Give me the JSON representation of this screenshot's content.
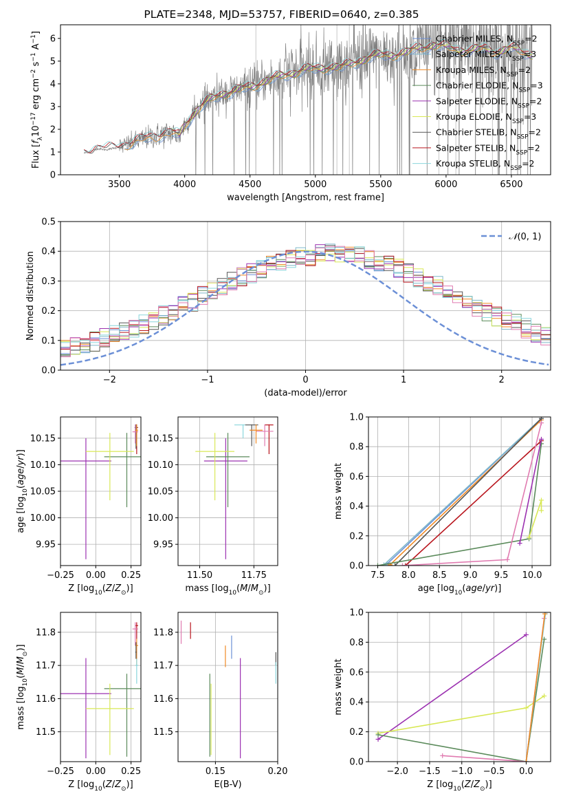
{
  "figure_title": "PLATE=2348, MJD=53757, FIBERID=0640, z=0.385",
  "colors": {
    "Chabrier MILES": "#6b8fd6",
    "Salpeter MILES": "#7fb8c9",
    "Kroupa MILES": "#f08a24",
    "Chabrier ELODIE": "#5a8a5a",
    "Salpeter ELODIE": "#9b30b0",
    "Kroupa ELODIE": "#d8e855",
    "Chabrier STELIB": "#555555",
    "Salpeter STELIB": "#b8141c",
    "Kroupa STELIB": "#8ad6dc",
    "pink": "#e07ab0",
    "data": "#7f7f7f"
  },
  "chart_data": [
    {
      "id": "spectrum",
      "type": "line",
      "xlabel": "wavelength [Angstrom, rest frame]",
      "ylabel": "Flux [f_λ 10^-17 erg cm^-2 s^-1 A^-1]",
      "xlim": [
        3050,
        6800
      ],
      "ylim": [
        0,
        6.6
      ],
      "xticks": [
        3500,
        4000,
        4500,
        5000,
        5500,
        6000,
        6500
      ],
      "yticks": [
        0,
        1,
        2,
        3,
        4,
        5,
        6
      ],
      "grid": false,
      "legend_position": "right",
      "legend": [
        {
          "prefix": "Chabrier MILES, N",
          "sub": "SSP",
          "suffix": "=2"
        },
        {
          "prefix": "Salpeter MILES, N",
          "sub": "SSP",
          "suffix": "=3"
        },
        {
          "prefix": "Kroupa MILES, N",
          "sub": "SSP",
          "suffix": "=2"
        },
        {
          "prefix": "Chabrier ELODIE, N",
          "sub": "SSP",
          "suffix": "=3"
        },
        {
          "prefix": "Salpeter ELODIE, N",
          "sub": "SSP",
          "suffix": "=2"
        },
        {
          "prefix": "Kroupa ELODIE, N",
          "sub": "SSP",
          "suffix": "=3"
        },
        {
          "prefix": "Chabrier STELIB, N",
          "sub": "SSP",
          "suffix": "=2"
        },
        {
          "prefix": "Salpeter STELIB, N",
          "sub": "SSP",
          "suffix": "=2"
        },
        {
          "prefix": "Kroupa STELIB, N",
          "sub": "SSP",
          "suffix": "=2"
        }
      ],
      "continuum_points": [
        [
          3230,
          0.95
        ],
        [
          3290,
          1.05
        ],
        [
          3330,
          1.15
        ],
        [
          3400,
          1.1
        ],
        [
          3480,
          1.2
        ],
        [
          3600,
          1.4
        ],
        [
          3700,
          1.6
        ],
        [
          3800,
          1.75
        ],
        [
          3900,
          1.85
        ],
        [
          3960,
          1.7
        ],
        [
          4000,
          2.2
        ],
        [
          4100,
          2.9
        ],
        [
          4200,
          3.3
        ],
        [
          4300,
          3.6
        ],
        [
          4400,
          3.7
        ],
        [
          4500,
          3.85
        ],
        [
          4600,
          4.1
        ],
        [
          4700,
          4.25
        ],
        [
          4800,
          4.45
        ],
        [
          4900,
          4.6
        ],
        [
          5000,
          4.65
        ],
        [
          5100,
          4.75
        ],
        [
          5200,
          4.7
        ],
        [
          5300,
          4.95
        ],
        [
          5400,
          5.15
        ],
        [
          5500,
          5.25
        ],
        [
          5600,
          5.3
        ],
        [
          5700,
          5.35
        ],
        [
          5800,
          5.6
        ],
        [
          5900,
          5.7
        ],
        [
          6000,
          5.6
        ],
        [
          6100,
          5.5
        ],
        [
          6200,
          5.45
        ],
        [
          6300,
          5.55
        ],
        [
          6400,
          5.4
        ],
        [
          6500,
          5.55
        ],
        [
          6600,
          5.4
        ],
        [
          6660,
          5.3
        ]
      ]
    },
    {
      "id": "residuals",
      "type": "histogram",
      "xlabel": "(data-model)/error",
      "ylabel": "Normed distribution",
      "xlim": [
        -2.5,
        2.5
      ],
      "ylim": [
        0,
        0.5
      ],
      "xticks": [
        -2,
        -1,
        0,
        1,
        2
      ],
      "yticks": [
        0.0,
        0.1,
        0.2,
        0.3,
        0.4,
        0.5
      ],
      "grid": true,
      "legend_position": "top-right",
      "legend": "N(0,1)",
      "gaussian": {
        "mean": 0,
        "sigma": 1
      },
      "bin_width": 0.1
    },
    {
      "id": "age_vs_Z",
      "type": "errorbar",
      "xlabel": "Z [log10(Z/Z⊙)]",
      "ylabel": "age [log10(age/yr)]",
      "xlim": [
        -0.25,
        0.32
      ],
      "ylim": [
        9.91,
        10.19
      ],
      "xticks": [
        -0.25,
        0.0,
        0.25
      ],
      "yticks": [
        9.95,
        10.0,
        10.05,
        10.1,
        10.15
      ],
      "grid": true,
      "points": [
        {
          "model": "Salpeter ELODIE",
          "x": -0.07,
          "xerr": 0.18,
          "y": 10.107,
          "ylo": 9.922,
          "yhi": 10.15
        },
        {
          "model": "Chabrier ELODIE",
          "x": 0.22,
          "xerr": 0.16,
          "y": 10.115,
          "ylo": 10.02,
          "yhi": 10.16
        },
        {
          "model": "Kroupa ELODIE",
          "x": 0.1,
          "xerr": 0.17,
          "y": 10.125,
          "ylo": 10.033,
          "yhi": 10.16
        },
        {
          "model": "Salpeter STELIB",
          "x": 0.29,
          "xerr": 0.01,
          "y": 10.17,
          "ylo": 10.12,
          "yhi": 10.176
        },
        {
          "model": "Chabrier STELIB",
          "x": 0.285,
          "xerr": 0.01,
          "y": 10.17,
          "ylo": 10.13,
          "yhi": 10.176
        },
        {
          "model": "pink",
          "x": 0.28,
          "xerr": 0.02,
          "y": 10.162,
          "ylo": 10.14,
          "yhi": 10.176
        },
        {
          "model": "Kroupa MILES",
          "x": 0.29,
          "xerr": 0.01,
          "y": 10.165,
          "ylo": 10.135,
          "yhi": 10.176
        }
      ]
    },
    {
      "id": "age_vs_mass",
      "type": "errorbar",
      "xlabel": "mass [log10(M/M⊙)]",
      "ylabel": "",
      "xlim": [
        11.4,
        11.86
      ],
      "ylim": [
        9.91,
        10.19
      ],
      "xticks": [
        11.5,
        11.75
      ],
      "yticks": [
        9.95,
        10.0,
        10.05,
        10.1,
        10.15
      ],
      "grid": true,
      "points": [
        {
          "model": "Salpeter ELODIE",
          "x": 11.62,
          "xerr": 0.1,
          "y": 10.107,
          "ylo": 9.922,
          "yhi": 10.15
        },
        {
          "model": "Chabrier ELODIE",
          "x": 11.63,
          "xerr": 0.1,
          "y": 10.115,
          "ylo": 10.02,
          "yhi": 10.16
        },
        {
          "model": "Kroupa ELODIE",
          "x": 11.57,
          "xerr": 0.09,
          "y": 10.125,
          "ylo": 10.033,
          "yhi": 10.16
        },
        {
          "model": "Kroupa STELIB",
          "x": 11.7,
          "xerr": 0.04,
          "y": 10.175,
          "ylo": 10.15,
          "yhi": 10.176
        },
        {
          "model": "Chabrier STELIB",
          "x": 11.74,
          "xerr": 0.03,
          "y": 10.175,
          "ylo": 10.135,
          "yhi": 10.176
        },
        {
          "model": "Salpeter STELIB",
          "x": 11.82,
          "xerr": 0.02,
          "y": 10.175,
          "ylo": 10.12,
          "yhi": 10.176
        },
        {
          "model": "pink",
          "x": 11.8,
          "xerr": 0.04,
          "y": 10.163,
          "ylo": 10.135,
          "yhi": 10.176
        },
        {
          "model": "Kroupa MILES",
          "x": 11.76,
          "xerr": 0.03,
          "y": 10.165,
          "ylo": 10.14,
          "yhi": 10.176
        }
      ]
    },
    {
      "id": "mass_weight_vs_age",
      "type": "line",
      "xlabel": "age [log10(age/yr)]",
      "ylabel": "mass weight",
      "xlim": [
        7.35,
        10.3
      ],
      "ylim": [
        0,
        1
      ],
      "xticks": [
        7.5,
        8.0,
        8.5,
        9.0,
        9.5,
        10.0
      ],
      "yticks": [
        0.0,
        0.2,
        0.4,
        0.6,
        0.8,
        1.0
      ],
      "grid": true,
      "series": [
        {
          "model": "Chabrier MILES",
          "points": [
            [
              7.65,
              0.01
            ],
            [
              10.15,
              0.99
            ]
          ]
        },
        {
          "model": "Salpeter MILES",
          "points": [
            [
              7.6,
              0.005
            ],
            [
              10.15,
              0.99
            ]
          ]
        },
        {
          "model": "Kroupa MILES",
          "points": [
            [
              7.7,
              0.005
            ],
            [
              10.15,
              0.98
            ]
          ]
        },
        {
          "model": "Chabrier STELIB",
          "points": [
            [
              7.78,
              0.0
            ],
            [
              10.15,
              0.99
            ]
          ]
        },
        {
          "model": "Salpeter STELIB",
          "points": [
            [
              7.95,
              0.0
            ],
            [
              10.15,
              0.84
            ]
          ]
        },
        {
          "model": "Chabrier ELODIE",
          "points": [
            [
              7.5,
              0.0
            ],
            [
              9.95,
              0.18
            ],
            [
              10.15,
              0.82
            ]
          ]
        },
        {
          "model": "Salpeter ELODIE",
          "points": [
            [
              9.8,
              0.15
            ],
            [
              10.15,
              0.85
            ]
          ]
        },
        {
          "model": "Kroupa ELODIE",
          "points": [
            [
              9.95,
              0.19
            ],
            [
              10.15,
              0.44
            ],
            [
              10.15,
              0.37
            ]
          ]
        },
        {
          "model": "pink",
          "points": [
            [
              7.9,
              0.0
            ],
            [
              9.6,
              0.04
            ],
            [
              10.15,
              0.96
            ]
          ]
        }
      ]
    },
    {
      "id": "mass_vs_Z",
      "type": "errorbar",
      "xlabel": "Z [log10(Z/Z⊙)]",
      "ylabel": "mass [log10(M/M⊙)]",
      "xlim": [
        -0.25,
        0.32
      ],
      "ylim": [
        11.41,
        11.86
      ],
      "xticks": [
        -0.25,
        0.0,
        0.25
      ],
      "yticks": [
        11.5,
        11.6,
        11.7,
        11.8
      ],
      "grid": true,
      "points": [
        {
          "model": "Salpeter ELODIE",
          "x": -0.07,
          "xerr": 0.18,
          "y": 11.615,
          "ylo": 11.42,
          "yhi": 11.722
        },
        {
          "model": "Chabrier ELODIE",
          "x": 0.22,
          "xerr": 0.16,
          "y": 11.63,
          "ylo": 11.425,
          "yhi": 11.675
        },
        {
          "model": "Kroupa ELODIE",
          "x": 0.1,
          "xerr": 0.17,
          "y": 11.57,
          "ylo": 11.43,
          "yhi": 11.645
        },
        {
          "model": "Salpeter STELIB",
          "x": 0.29,
          "xerr": 0.01,
          "y": 11.82,
          "ylo": 11.78,
          "yhi": 11.83
        },
        {
          "model": "pink",
          "x": 0.28,
          "xerr": 0.02,
          "y": 11.81,
          "ylo": 11.76,
          "yhi": 11.83
        },
        {
          "model": "Kroupa MILES",
          "x": 0.29,
          "xerr": 0.01,
          "y": 11.76,
          "ylo": 11.7,
          "yhi": 11.78
        },
        {
          "model": "Kroupa STELIB",
          "x": 0.29,
          "xerr": 0.01,
          "y": 11.7,
          "ylo": 11.645,
          "yhi": 11.72
        },
        {
          "model": "Chabrier STELIB",
          "x": 0.285,
          "xerr": 0.005,
          "y": 11.74,
          "ylo": 11.72,
          "yhi": 11.77
        }
      ]
    },
    {
      "id": "mass_vs_EBV",
      "type": "errorbar",
      "xlabel": "E(B-V)",
      "ylabel": "",
      "xlim": [
        0.12,
        0.2
      ],
      "ylim": [
        11.41,
        11.86
      ],
      "xticks": [
        0.15,
        0.2
      ],
      "yticks": [
        11.5,
        11.6,
        11.7,
        11.8
      ],
      "grid": true,
      "points": [
        {
          "model": "Chabrier ELODIE",
          "x": 0.1455,
          "ylo": 11.425,
          "yhi": 11.675
        },
        {
          "model": "Kroupa ELODIE",
          "x": 0.1465,
          "ylo": 11.43,
          "yhi": 11.645
        },
        {
          "model": "Salpeter ELODIE",
          "x": 0.17,
          "ylo": 11.42,
          "yhi": 11.722
        },
        {
          "model": "Kroupa MILES",
          "x": 0.158,
          "ylo": 11.695,
          "yhi": 11.76
        },
        {
          "model": "Chabrier MILES",
          "x": 0.163,
          "ylo": 11.72,
          "yhi": 11.79
        },
        {
          "model": "Salpeter STELIB",
          "x": 0.13,
          "ylo": 11.78,
          "yhi": 11.83
        },
        {
          "model": "pink",
          "x": 0.1225,
          "ylo": 11.765,
          "yhi": 11.835
        },
        {
          "model": "Chabrier STELIB",
          "x": 0.1985,
          "ylo": 11.7,
          "yhi": 11.74
        },
        {
          "model": "Kroupa STELIB",
          "x": 0.1985,
          "ylo": 11.645,
          "yhi": 11.71
        }
      ]
    },
    {
      "id": "mass_weight_vs_Z",
      "type": "line",
      "xlabel": "Z [log10(Z/Z⊙)]",
      "ylabel": "mass weight",
      "xlim": [
        -2.45,
        0.38
      ],
      "ylim": [
        0,
        1
      ],
      "xticks": [
        -2.0,
        -1.5,
        -1.0,
        -0.5,
        0.0
      ],
      "yticks": [
        0.0,
        0.2,
        0.4,
        0.6,
        0.8,
        1.0
      ],
      "grid": true,
      "series": [
        {
          "model": "Salpeter ELODIE",
          "points": [
            [
              -2.3,
              0.15
            ],
            [
              0.0,
              0.85
            ]
          ]
        },
        {
          "model": "Kroupa ELODIE",
          "points": [
            [
              -2.3,
              0.19
            ],
            [
              0.0,
              0.36
            ],
            [
              0.28,
              0.44
            ]
          ]
        },
        {
          "model": "Chabrier ELODIE",
          "points": [
            [
              -2.3,
              0.18
            ],
            [
              0.0,
              0.0
            ],
            [
              0.28,
              0.82
            ]
          ]
        },
        {
          "model": "pink",
          "points": [
            [
              -1.3,
              0.04
            ],
            [
              0.0,
              0.0
            ],
            [
              0.28,
              0.96
            ]
          ]
        },
        {
          "model": "Chabrier MILES",
          "points": [
            [
              0.0,
              0.0
            ],
            [
              0.3,
              1.0
            ]
          ]
        },
        {
          "model": "Kroupa STELIB",
          "points": [
            [
              0.0,
              0.0
            ],
            [
              0.3,
              0.99
            ]
          ]
        },
        {
          "model": "Kroupa MILES",
          "points": [
            [
              0.0,
              0.0
            ],
            [
              0.29,
              0.99
            ]
          ]
        }
      ]
    }
  ]
}
